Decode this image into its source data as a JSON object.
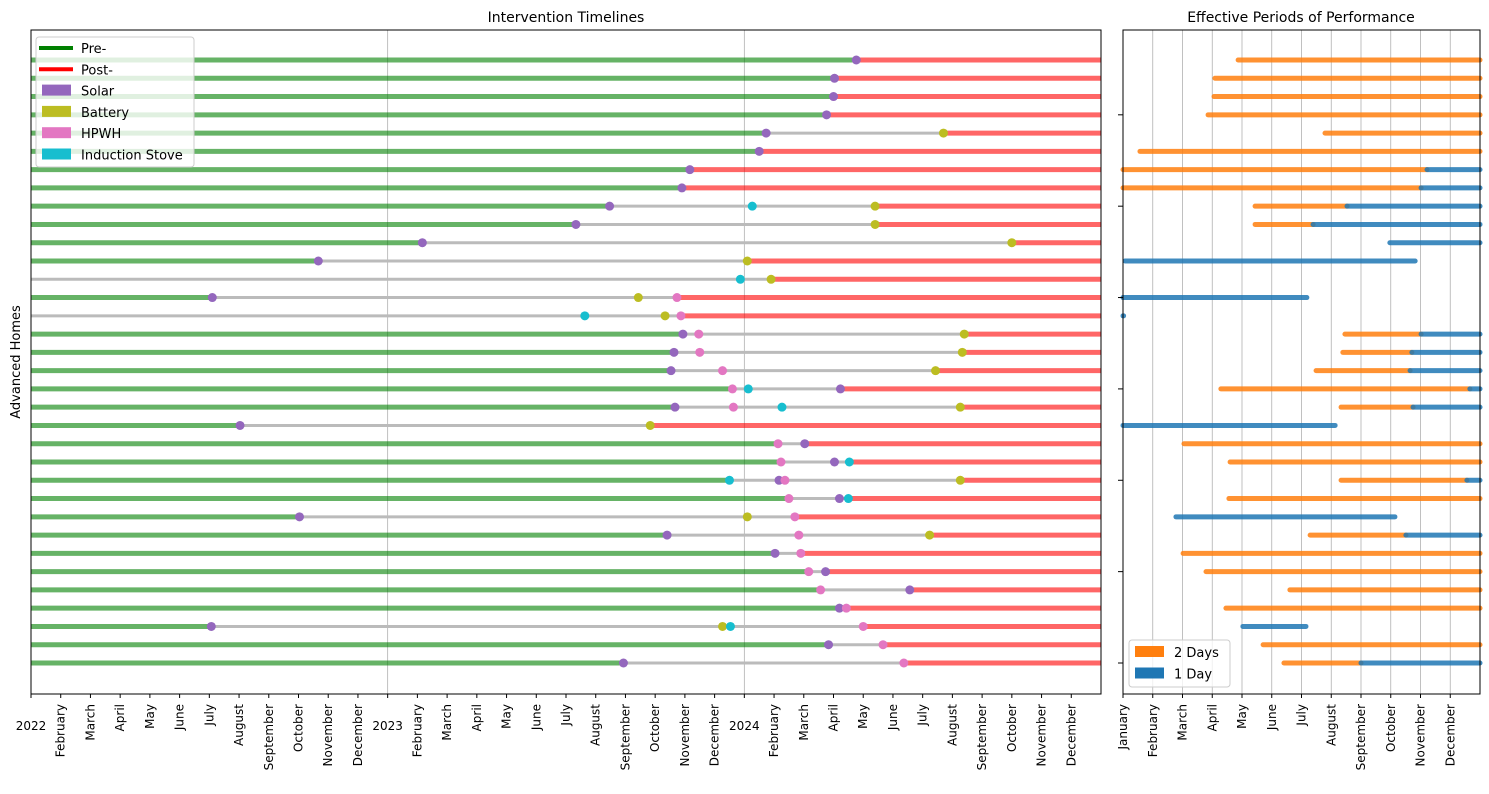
{
  "chart_data": [
    {
      "type": "timeline",
      "title": "Intervention Timelines",
      "ylabel": "Advanced Homes",
      "xlabel": "",
      "xlim": [
        "2022-01-01",
        "2025-01-01"
      ],
      "year_labels": [
        "2022",
        "2023",
        "2024"
      ],
      "month_labels": [
        "February",
        "March",
        "April",
        "May",
        "June",
        "July",
        "August",
        "September",
        "October",
        "November",
        "December"
      ],
      "legend": {
        "placement": "top-left",
        "entries": [
          {
            "label": "Pre-",
            "color": "#008000",
            "kind": "line"
          },
          {
            "label": "Post-",
            "color": "#ff0000",
            "kind": "line"
          },
          {
            "label": "Solar",
            "color": "#9467bd",
            "kind": "patch"
          },
          {
            "label": "Battery",
            "color": "#bcbd22",
            "kind": "patch"
          },
          {
            "label": "HPWH",
            "color": "#e377c2",
            "kind": "patch"
          },
          {
            "label": "Induction Stove",
            "color": "#17becf",
            "kind": "patch"
          }
        ]
      },
      "colors": {
        "pre": "#008000",
        "post": "#ff0000",
        "between": "#bbbbbb",
        "Solar": "#9467bd",
        "Battery": "#bcbd22",
        "HPWH": "#e377c2",
        "Induction Stove": "#17becf"
      },
      "homes": [
        {
          "pre": true,
          "events": [
            [
              "Solar",
              "2024-04-24"
            ]
          ]
        },
        {
          "pre": true,
          "events": [
            [
              "Solar",
              "2024-04-02"
            ]
          ]
        },
        {
          "pre": true,
          "events": [
            [
              "Solar",
              "2024-04-01"
            ]
          ]
        },
        {
          "pre": true,
          "events": [
            [
              "Solar",
              "2024-03-24"
            ]
          ]
        },
        {
          "pre": true,
          "events": [
            [
              "Solar",
              "2024-01-23"
            ],
            [
              "Battery",
              "2024-07-22"
            ]
          ]
        },
        {
          "pre": true,
          "events": [
            [
              "Solar",
              "2024-01-16"
            ]
          ]
        },
        {
          "pre": true,
          "events": [
            [
              "Solar",
              "2023-11-06"
            ]
          ]
        },
        {
          "pre": true,
          "events": [
            [
              "Solar",
              "2023-10-28"
            ]
          ]
        },
        {
          "pre": true,
          "events": [
            [
              "Solar",
              "2023-08-15"
            ],
            [
              "Induction Stove",
              "2024-01-09"
            ],
            [
              "Battery",
              "2024-05-13"
            ]
          ]
        },
        {
          "pre": true,
          "events": [
            [
              "Solar",
              "2023-07-11"
            ],
            [
              "Battery",
              "2024-05-13"
            ]
          ]
        },
        {
          "pre": true,
          "events": [
            [
              "Solar",
              "2023-02-06"
            ],
            [
              "Battery",
              "2024-10-01"
            ]
          ]
        },
        {
          "pre": true,
          "events": [
            [
              "Solar",
              "2022-10-21"
            ],
            [
              "Battery",
              "2024-01-04"
            ]
          ]
        },
        {
          "pre": false,
          "events": [
            [
              "Induction Stove",
              "2023-12-27"
            ],
            [
              "Battery",
              "2024-01-28"
            ]
          ]
        },
        {
          "pre": true,
          "events": [
            [
              "Solar",
              "2022-07-04"
            ],
            [
              "Battery",
              "2023-09-14"
            ],
            [
              "HPWH",
              "2023-10-23"
            ]
          ]
        },
        {
          "pre": false,
          "events": [
            [
              "Induction Stove",
              "2023-07-20"
            ],
            [
              "Battery",
              "2023-10-11"
            ],
            [
              "HPWH",
              "2023-10-27"
            ]
          ]
        },
        {
          "pre": true,
          "events": [
            [
              "Solar",
              "2023-10-29"
            ],
            [
              "HPWH",
              "2023-11-15"
            ],
            [
              "Battery",
              "2024-08-13"
            ]
          ]
        },
        {
          "pre": true,
          "events": [
            [
              "Solar",
              "2023-10-20"
            ],
            [
              "HPWH",
              "2023-11-16"
            ],
            [
              "Battery",
              "2024-08-11"
            ]
          ]
        },
        {
          "pre": true,
          "events": [
            [
              "Solar",
              "2023-10-17"
            ],
            [
              "HPWH",
              "2023-12-09"
            ],
            [
              "Battery",
              "2024-07-14"
            ]
          ]
        },
        {
          "pre": true,
          "events": [
            [
              "HPWH",
              "2023-12-19"
            ],
            [
              "Induction Stove",
              "2024-01-05"
            ],
            [
              "Solar",
              "2024-04-08"
            ]
          ]
        },
        {
          "pre": true,
          "events": [
            [
              "Solar",
              "2023-10-21"
            ],
            [
              "HPWH",
              "2023-12-20"
            ],
            [
              "Induction Stove",
              "2024-02-09"
            ],
            [
              "Battery",
              "2024-08-09"
            ]
          ]
        },
        {
          "pre": true,
          "events": [
            [
              "Solar",
              "2022-08-02"
            ],
            [
              "Battery",
              "2023-09-26"
            ]
          ]
        },
        {
          "pre": true,
          "events": [
            [
              "HPWH",
              "2024-02-05"
            ],
            [
              "Solar",
              "2024-03-02"
            ]
          ]
        },
        {
          "pre": true,
          "events": [
            [
              "HPWH",
              "2024-02-08"
            ],
            [
              "Solar",
              "2024-04-02"
            ],
            [
              "Induction Stove",
              "2024-04-17"
            ]
          ]
        },
        {
          "pre": true,
          "events": [
            [
              "Induction Stove",
              "2023-12-16"
            ],
            [
              "Solar",
              "2024-02-06"
            ],
            [
              "HPWH",
              "2024-02-12"
            ],
            [
              "Battery",
              "2024-08-09"
            ]
          ]
        },
        {
          "pre": true,
          "events": [
            [
              "HPWH",
              "2024-02-16"
            ],
            [
              "Solar",
              "2024-04-07"
            ],
            [
              "Induction Stove",
              "2024-04-16"
            ]
          ]
        },
        {
          "pre": true,
          "events": [
            [
              "Solar",
              "2022-10-02"
            ],
            [
              "Battery",
              "2024-01-04"
            ],
            [
              "HPWH",
              "2024-02-22"
            ]
          ]
        },
        {
          "pre": true,
          "events": [
            [
              "Solar",
              "2023-10-13"
            ],
            [
              "HPWH",
              "2024-02-26"
            ],
            [
              "Battery",
              "2024-07-08"
            ]
          ]
        },
        {
          "pre": true,
          "events": [
            [
              "Solar",
              "2024-02-02"
            ],
            [
              "HPWH",
              "2024-02-28"
            ]
          ]
        },
        {
          "pre": true,
          "events": [
            [
              "HPWH",
              "2024-03-06"
            ],
            [
              "Solar",
              "2024-03-23"
            ]
          ]
        },
        {
          "pre": true,
          "events": [
            [
              "HPWH",
              "2024-03-18"
            ],
            [
              "Solar",
              "2024-06-18"
            ]
          ]
        },
        {
          "pre": true,
          "events": [
            [
              "Solar",
              "2024-04-07"
            ],
            [
              "HPWH",
              "2024-04-14"
            ]
          ]
        },
        {
          "pre": true,
          "events": [
            [
              "Solar",
              "2022-07-03"
            ],
            [
              "Battery",
              "2023-12-09"
            ],
            [
              "Induction Stove",
              "2023-12-17"
            ],
            [
              "HPWH",
              "2024-05-01"
            ]
          ]
        },
        {
          "pre": true,
          "events": [
            [
              "Solar",
              "2024-03-26"
            ],
            [
              "HPWH",
              "2024-05-21"
            ]
          ]
        },
        {
          "pre": true,
          "events": [
            [
              "Solar",
              "2023-08-29"
            ],
            [
              "HPWH",
              "2024-06-12"
            ]
          ]
        }
      ]
    },
    {
      "type": "timeline",
      "title": "Effective Periods of Performance",
      "xlim_months": [
        0,
        12
      ],
      "month_labels": [
        "January",
        "February",
        "March",
        "April",
        "May",
        "June",
        "July",
        "August",
        "September",
        "October",
        "November",
        "December"
      ],
      "legend": {
        "placement": "bottom-left",
        "entries": [
          {
            "label": "2 Days",
            "color": "#ff7f0e"
          },
          {
            "label": "1 Day",
            "color": "#1f77b4"
          }
        ]
      },
      "colors": {
        "2 Days": "#ff7f0e",
        "1 Day": "#1f77b4"
      },
      "rows": [
        [
          [
            "2 Days",
            3.87,
            12
          ]
        ],
        [
          [
            "2 Days",
            3.09,
            12
          ]
        ],
        [
          [
            "2 Days",
            3.06,
            12
          ]
        ],
        [
          [
            "2 Days",
            2.86,
            12
          ]
        ],
        [
          [
            "2 Days",
            6.79,
            12
          ]
        ],
        [
          [
            "2 Days",
            0.57,
            12
          ]
        ],
        [
          [
            "2 Days",
            0,
            10.22
          ],
          [
            "1 Day",
            10.22,
            12
          ]
        ],
        [
          [
            "2 Days",
            0,
            10.02
          ],
          [
            "1 Day",
            10.02,
            12
          ]
        ],
        [
          [
            "2 Days",
            4.44,
            7.53
          ],
          [
            "1 Day",
            7.53,
            12
          ]
        ],
        [
          [
            "2 Days",
            4.44,
            6.39
          ],
          [
            "1 Day",
            6.39,
            12
          ]
        ],
        [
          [
            "1 Day",
            8.97,
            12
          ]
        ],
        [
          [
            "1 Day",
            0.07,
            9.82
          ]
        ],
        [],
        [
          [
            "1 Day",
            0,
            6.18
          ]
        ],
        [
          [
            "1 Day",
            0,
            0.02
          ]
        ],
        [
          [
            "2 Days",
            7.46,
            10.02
          ],
          [
            "1 Day",
            10.02,
            12
          ]
        ],
        [
          [
            "2 Days",
            7.39,
            9.71
          ],
          [
            "1 Day",
            9.71,
            12
          ]
        ],
        [
          [
            "2 Days",
            6.49,
            9.65
          ],
          [
            "1 Day",
            9.65,
            12
          ]
        ],
        [
          [
            "2 Days",
            3.29,
            11.66
          ],
          [
            "1 Day",
            11.66,
            12
          ]
        ],
        [
          [
            "2 Days",
            7.33,
            9.75
          ],
          [
            "1 Day",
            9.75,
            12
          ]
        ],
        [
          [
            "1 Day",
            0,
            7.13
          ]
        ],
        [
          [
            "2 Days",
            2.05,
            12
          ]
        ],
        [
          [
            "2 Days",
            3.6,
            12
          ]
        ],
        [
          [
            "2 Days",
            7.33,
            11.56
          ],
          [
            "1 Day",
            11.56,
            12
          ]
        ],
        [
          [
            "2 Days",
            3.56,
            12
          ]
        ],
        [
          [
            "1 Day",
            1.78,
            9.14
          ]
        ],
        [
          [
            "2 Days",
            6.29,
            9.51
          ],
          [
            "1 Day",
            9.51,
            12
          ]
        ],
        [
          [
            "2 Days",
            2.02,
            12
          ]
        ],
        [
          [
            "2 Days",
            2.79,
            12
          ]
        ],
        [
          [
            "2 Days",
            5.61,
            12
          ]
        ],
        [
          [
            "2 Days",
            3.46,
            12
          ]
        ],
        [
          [
            "1 Day",
            4.03,
            6.15
          ]
        ],
        [
          [
            "2 Days",
            4.71,
            12
          ]
        ],
        [
          [
            "2 Days",
            5.41,
            8.0
          ],
          [
            "1 Day",
            8.0,
            12
          ]
        ]
      ]
    }
  ]
}
